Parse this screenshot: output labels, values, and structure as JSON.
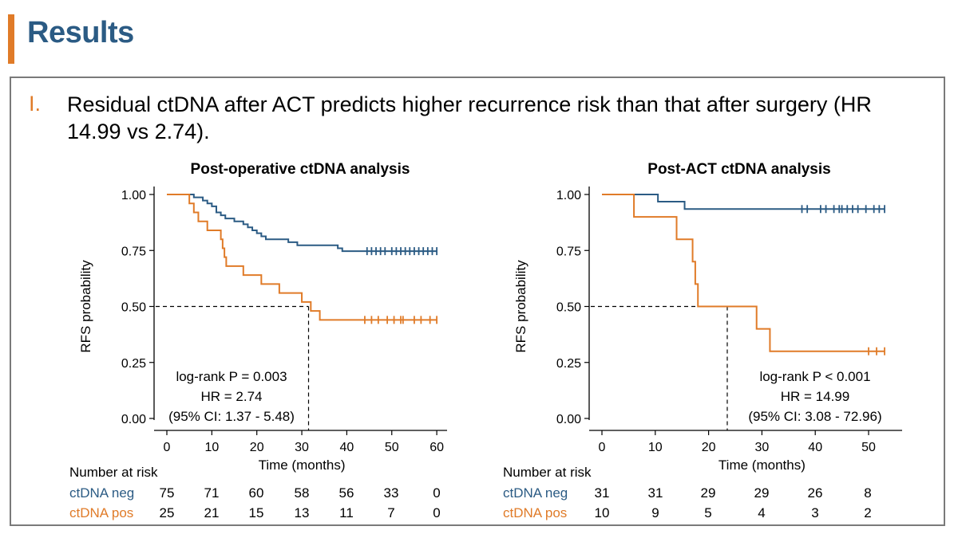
{
  "slide": {
    "title": "Results",
    "bullet_number": "I.",
    "bullet_text": "Residual ctDNA after ACT predicts higher recurrence risk than that after surgery (HR 14.99 vs 2.74)."
  },
  "colors": {
    "neg": "#2b5b84",
    "pos": "#e07b28",
    "accent": "#e07b28",
    "frame": "#7a7a7a"
  },
  "chart_data": [
    {
      "type": "line",
      "title": "Post-operative ctDNA analysis",
      "xlabel": "Time (months)",
      "ylabel": "RFS probability",
      "xlim": [
        -2,
        62
      ],
      "ylim": [
        0,
        1
      ],
      "xticks": [
        0,
        10,
        20,
        30,
        40,
        50,
        60
      ],
      "yticks": [
        "0.00",
        "0.25",
        "0.50",
        "0.75",
        "1.00"
      ],
      "series": [
        {
          "name": "ctDNA neg",
          "color": "#2b5b84",
          "steps": [
            [
              0,
              1.0
            ],
            [
              6,
              0.987
            ],
            [
              8,
              0.973
            ],
            [
              9,
              0.96
            ],
            [
              10,
              0.947
            ],
            [
              11,
              0.92
            ],
            [
              12,
              0.907
            ],
            [
              13,
              0.893
            ],
            [
              15,
              0.88
            ],
            [
              17,
              0.867
            ],
            [
              18,
              0.853
            ],
            [
              19,
              0.84
            ],
            [
              20,
              0.827
            ],
            [
              21,
              0.813
            ],
            [
              22,
              0.8
            ],
            [
              27,
              0.787
            ],
            [
              29,
              0.773
            ],
            [
              38,
              0.76
            ],
            [
              39,
              0.747
            ],
            [
              60,
              0.747
            ]
          ],
          "censor": [
            44.5,
            45.5,
            46.5,
            47.5,
            48.5,
            50,
            51,
            52,
            53,
            54,
            55,
            56,
            57,
            58,
            59,
            60
          ]
        },
        {
          "name": "ctDNA pos",
          "color": "#e07b28",
          "steps": [
            [
              0,
              1.0
            ],
            [
              5,
              0.96
            ],
            [
              6,
              0.92
            ],
            [
              7,
              0.88
            ],
            [
              9,
              0.84
            ],
            [
              12,
              0.8
            ],
            [
              12.4,
              0.76
            ],
            [
              12.8,
              0.72
            ],
            [
              13.2,
              0.68
            ],
            [
              17,
              0.64
            ],
            [
              21,
              0.6
            ],
            [
              25,
              0.56
            ],
            [
              30,
              0.52
            ],
            [
              32,
              0.48
            ],
            [
              34,
              0.44
            ],
            [
              60,
              0.44
            ]
          ],
          "censor": [
            44,
            45.5,
            47,
            49,
            50.5,
            52,
            52.5,
            55,
            56.5,
            58.5,
            60
          ]
        }
      ],
      "median_line": {
        "x": 31.5,
        "y": 0.5
      },
      "annotation": [
        "log-rank P = 0.003",
        "HR = 2.74",
        "(95% CI: 1.37 - 5.48)"
      ],
      "risk_table": {
        "header": "Number at risk",
        "rows": [
          {
            "label": "ctDNA neg",
            "values": [
              "75",
              "71",
              "60",
              "58",
              "56",
              "33",
              "0"
            ]
          },
          {
            "label": "ctDNA pos",
            "values": [
              "25",
              "21",
              "15",
              "13",
              "11",
              "7",
              "0"
            ]
          }
        ]
      }
    },
    {
      "type": "line",
      "title": "Post-ACT ctDNA analysis",
      "xlabel": "Time (months)",
      "ylabel": "RFS probability",
      "xlim": [
        -2,
        53
      ],
      "ylim": [
        0,
        1
      ],
      "xticks": [
        0,
        10,
        20,
        30,
        40,
        50
      ],
      "yticks": [
        "0.00",
        "0.25",
        "0.50",
        "0.75",
        "1.00"
      ],
      "series": [
        {
          "name": "ctDNA neg",
          "color": "#2b5b84",
          "steps": [
            [
              0,
              1.0
            ],
            [
              10.5,
              0.968
            ],
            [
              15.5,
              0.935
            ],
            [
              53,
              0.935
            ]
          ],
          "censor": [
            37.5,
            38.5,
            41,
            42,
            43.5,
            44.5,
            45,
            46,
            47,
            48,
            49.5,
            51,
            52,
            53
          ]
        },
        {
          "name": "ctDNA pos",
          "color": "#e07b28",
          "steps": [
            [
              0,
              1.0
            ],
            [
              6,
              0.9
            ],
            [
              14,
              0.8
            ],
            [
              17,
              0.7
            ],
            [
              17.5,
              0.6
            ],
            [
              18,
              0.5
            ],
            [
              29,
              0.4
            ],
            [
              31.5,
              0.3
            ],
            [
              53,
              0.3
            ]
          ],
          "censor": [
            50,
            51.5,
            53
          ]
        }
      ],
      "median_line": {
        "x": 23.5,
        "y": 0.5
      },
      "annotation": [
        "log-rank P < 0.001",
        "HR = 14.99",
        "(95% CI: 3.08 - 72.96)"
      ],
      "risk_table": {
        "header": "Number at risk",
        "rows": [
          {
            "label": "ctDNA neg",
            "values": [
              "31",
              "31",
              "29",
              "29",
              "26",
              "8"
            ]
          },
          {
            "label": "ctDNA pos",
            "values": [
              "10",
              "9",
              "5",
              "4",
              "3",
              "2"
            ]
          }
        ]
      }
    }
  ]
}
